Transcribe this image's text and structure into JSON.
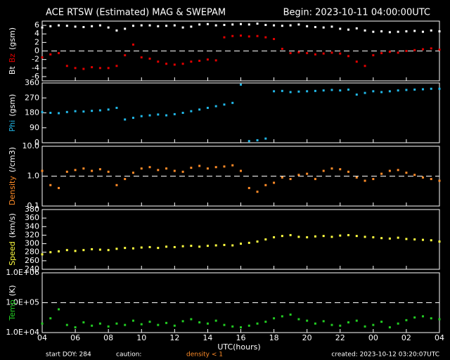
{
  "header": {
    "title": "ACE RTSW (Estimated) MAG & SWEPAM",
    "begin": "Begin: 2023-10-11 04:00:00UTC"
  },
  "footer": {
    "doy": "start DOY: 284",
    "caution": "caution:",
    "density_note": "density < 1",
    "created": "created: 2023-10-12 03:20:07UTC"
  },
  "xaxis": {
    "label": "UTC(hours)",
    "lim": [
      0,
      24
    ],
    "ticks": [
      {
        "value": 0,
        "label": "04"
      },
      {
        "value": 2,
        "label": "06"
      },
      {
        "value": 4,
        "label": "08"
      },
      {
        "value": 6,
        "label": "10"
      },
      {
        "value": 8,
        "label": "12"
      },
      {
        "value": 10,
        "label": "14"
      },
      {
        "value": 12,
        "label": "16"
      },
      {
        "value": 14,
        "label": "18"
      },
      {
        "value": 16,
        "label": "20"
      },
      {
        "value": 18,
        "label": "22"
      },
      {
        "value": 20,
        "label": "00"
      },
      {
        "value": 22,
        "label": "02"
      },
      {
        "value": 24,
        "label": "04"
      }
    ]
  },
  "chart_data": [
    {
      "type": "scatter",
      "ylabel": [
        "Bt",
        "Bz",
        "(gsm)"
      ],
      "ylabel_colors": [
        "#ffffff",
        "#e00000",
        "#ffffff"
      ],
      "ylim": [
        -7,
        7
      ],
      "yticks": [
        -6,
        -4,
        -2,
        0,
        2,
        4,
        6
      ],
      "hline": 0,
      "x": [
        0,
        0.5,
        1,
        1.5,
        2,
        2.5,
        3,
        3.5,
        4,
        4.5,
        5,
        5.5,
        6,
        6.5,
        7,
        7.5,
        8,
        8.5,
        9,
        9.5,
        10,
        10.5,
        11,
        11.5,
        12,
        12.5,
        13,
        13.5,
        14,
        14.5,
        15,
        15.5,
        16,
        16.5,
        17,
        17.5,
        18,
        18.5,
        19,
        19.5,
        20,
        20.5,
        21,
        21.5,
        22,
        22.5,
        23,
        23.5,
        24
      ],
      "series": [
        {
          "name": "Bt",
          "color": "#ffffff",
          "values": [
            5.5,
            5.8,
            6,
            5.9,
            5.7,
            5.6,
            5.8,
            6,
            5.5,
            4.8,
            5.2,
            5.9,
            6,
            6,
            5.8,
            5.9,
            6,
            5.5,
            5.7,
            6.2,
            6.3,
            6,
            6.1,
            6.2,
            6.3,
            6.2,
            6.4,
            6.1,
            6,
            5.9,
            6,
            6.2,
            5.8,
            5.6,
            5.5,
            5.7,
            5.2,
            5,
            5.3,
            4.8,
            4.5,
            4.6,
            4.4,
            4.5,
            4.6,
            4.7,
            4.5,
            4.8,
            4.6
          ]
        },
        {
          "name": "Bz",
          "color": "#e00000",
          "values": [
            -1.5,
            -0.8,
            -0.5,
            -3.5,
            -4,
            -4.2,
            -3.8,
            -4,
            -4,
            -3.5,
            -1,
            1.5,
            -1.5,
            -1.8,
            -2.5,
            -3,
            -3.2,
            -3,
            -2.5,
            -2.3,
            -2,
            -2.2,
            3.2,
            3.5,
            3.6,
            3.4,
            3.5,
            3.2,
            2.8,
            0.5,
            -0.5,
            -0.3,
            -0.5,
            -0.8,
            -0.6,
            -0.4,
            -0.6,
            -1.2,
            -2.5,
            -3.5,
            -1,
            -0.5,
            -0.2,
            -0.4,
            0,
            0.2,
            0.4,
            0.6,
            0.3
          ]
        }
      ]
    },
    {
      "type": "scatter",
      "ylabel": [
        "Phi",
        "(gsm)"
      ],
      "ylabel_colors": [
        "#22b8e8",
        "#ffffff"
      ],
      "ylim": [
        0,
        360
      ],
      "yticks": [
        0,
        90,
        180,
        270,
        360
      ],
      "x": [
        0,
        0.5,
        1,
        1.5,
        2,
        2.5,
        3,
        3.5,
        4,
        4.5,
        5,
        5.5,
        6,
        6.5,
        7,
        7.5,
        8,
        8.5,
        9,
        9.5,
        10,
        10.5,
        11,
        11.5,
        12,
        12.5,
        13,
        13.5,
        14,
        14.5,
        15,
        15.5,
        16,
        16.5,
        17,
        17.5,
        18,
        18.5,
        19,
        19.5,
        20,
        20.5,
        21,
        21.5,
        22,
        22.5,
        23,
        23.5,
        24
      ],
      "series": [
        {
          "name": "Phi",
          "color": "#22b8e8",
          "values": [
            185,
            180,
            178,
            185,
            190,
            188,
            192,
            195,
            200,
            210,
            140,
            150,
            160,
            165,
            170,
            165,
            172,
            180,
            190,
            200,
            210,
            220,
            230,
            240,
            350,
            10,
            15,
            25,
            310,
            312,
            305,
            308,
            310,
            312,
            315,
            318,
            315,
            320,
            290,
            300,
            310,
            305,
            310,
            315,
            318,
            320,
            322,
            325,
            325
          ]
        }
      ]
    },
    {
      "type": "scatter",
      "ylabel": [
        "Density",
        "(/cm3)"
      ],
      "ylabel_colors": [
        "#ff8c28",
        "#ffffff"
      ],
      "log": true,
      "ylim": [
        0.1,
        10
      ],
      "yticks": [
        0.1,
        {
          "value": 1,
          "label": "1.0"
        },
        {
          "value": 10,
          "label": "10.0"
        }
      ],
      "hline": 1,
      "x": [
        0,
        0.5,
        1,
        1.5,
        2,
        2.5,
        3,
        3.5,
        4,
        4.5,
        5,
        5.5,
        6,
        6.5,
        7,
        7.5,
        8,
        8.5,
        9,
        9.5,
        10,
        10.5,
        11,
        11.5,
        12,
        12.5,
        13,
        13.5,
        14,
        14.5,
        15,
        15.5,
        16,
        16.5,
        17,
        17.5,
        18,
        18.5,
        19,
        19.5,
        20,
        20.5,
        21,
        21.5,
        22,
        22.5,
        23,
        23.5,
        24
      ],
      "series": [
        {
          "name": "Density",
          "color": "#ff8c28",
          "values": [
            1.5,
            0.5,
            0.4,
            1.4,
            1.6,
            1.8,
            1.5,
            1.7,
            1.4,
            0.5,
            0.8,
            1.3,
            1.8,
            2,
            1.6,
            1.8,
            1.5,
            1.4,
            1.9,
            2.2,
            1.8,
            2,
            2.1,
            2.3,
            1.5,
            0.4,
            0.3,
            0.5,
            0.6,
            0.9,
            0.8,
            1.1,
            1.2,
            0.8,
            1.5,
            1.8,
            1.7,
            1.4,
            0.9,
            0.7,
            0.8,
            1.2,
            1.5,
            1.6,
            1.3,
            1.1,
            0.9,
            0.8,
            0.7
          ]
        }
      ]
    },
    {
      "type": "scatter",
      "ylabel": [
        "Speed",
        "(km/s)"
      ],
      "ylabel_colors": [
        "#ffff40",
        "#ffffff"
      ],
      "ylim": [
        240,
        380
      ],
      "yticks": [
        240,
        260,
        280,
        300,
        320,
        340,
        360,
        380
      ],
      "x": [
        0,
        0.5,
        1,
        1.5,
        2,
        2.5,
        3,
        3.5,
        4,
        4.5,
        5,
        5.5,
        6,
        6.5,
        7,
        7.5,
        8,
        8.5,
        9,
        9.5,
        10,
        10.5,
        11,
        11.5,
        12,
        12.5,
        13,
        13.5,
        14,
        14.5,
        15,
        15.5,
        16,
        16.5,
        17,
        17.5,
        18,
        18.5,
        19,
        19.5,
        20,
        20.5,
        21,
        21.5,
        22,
        22.5,
        23,
        23.5,
        24
      ],
      "series": [
        {
          "name": "Speed",
          "color": "#ffff40",
          "values": [
            275,
            280,
            282,
            285,
            283,
            285,
            287,
            286,
            285,
            288,
            290,
            289,
            291,
            292,
            290,
            293,
            292,
            294,
            295,
            293,
            295,
            296,
            297,
            296,
            300,
            302,
            305,
            310,
            315,
            318,
            320,
            316,
            315,
            317,
            318,
            316,
            319,
            320,
            318,
            316,
            315,
            313,
            312,
            314,
            311,
            310,
            309,
            308,
            305
          ]
        }
      ]
    },
    {
      "type": "scatter",
      "ylabel": [
        "Temp",
        "(K)"
      ],
      "ylabel_colors": [
        "#22cc22",
        "#ffffff"
      ],
      "log": true,
      "ylim": [
        10000,
        1000000
      ],
      "yticks": [
        {
          "value": 10000,
          "label": "1.0E+04"
        },
        {
          "value": 100000,
          "label": "1.0E+05"
        },
        {
          "value": 1000000,
          "label": "1.0E+06"
        }
      ],
      "hline": 100000,
      "x": [
        0,
        0.5,
        1,
        1.5,
        2,
        2.5,
        3,
        3.5,
        4,
        4.5,
        5,
        5.5,
        6,
        6.5,
        7,
        7.5,
        8,
        8.5,
        9,
        9.5,
        10,
        10.5,
        11,
        11.5,
        12,
        12.5,
        13,
        13.5,
        14,
        14.5,
        15,
        15.5,
        16,
        16.5,
        17,
        17.5,
        18,
        18.5,
        19,
        19.5,
        20,
        20.5,
        21,
        21.5,
        22,
        22.5,
        23,
        23.5,
        24
      ],
      "series": [
        {
          "name": "Temp",
          "color": "#22cc22",
          "values": [
            20000,
            30000,
            60000,
            18000,
            15000,
            22000,
            17000,
            20000,
            16000,
            20000,
            18000,
            25000,
            19000,
            23000,
            18000,
            21000,
            17000,
            24000,
            28000,
            22000,
            20000,
            25000,
            18000,
            16000,
            15000,
            17000,
            20000,
            23000,
            30000,
            35000,
            40000,
            28000,
            25000,
            20000,
            24000,
            18000,
            17000,
            22000,
            25000,
            16000,
            18000,
            23000,
            15000,
            20000,
            26000,
            32000,
            35000,
            30000,
            28000
          ]
        }
      ]
    }
  ]
}
